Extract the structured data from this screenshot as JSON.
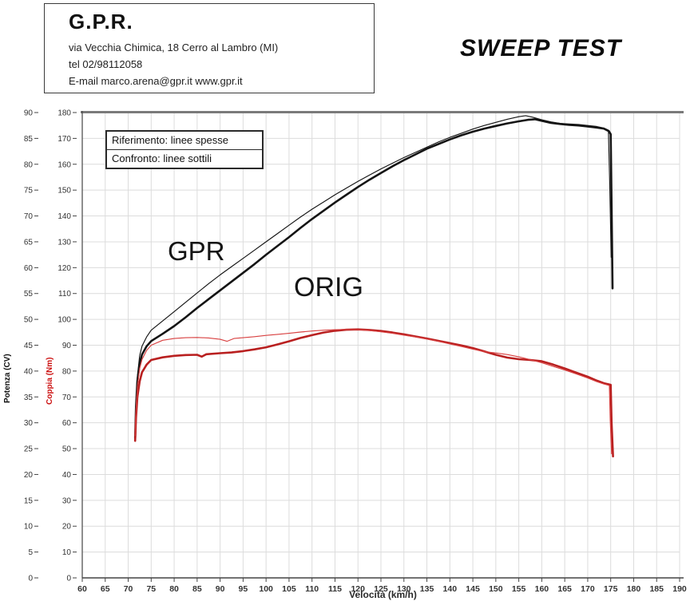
{
  "header": {
    "company": "G.P.R.",
    "address": "via Vecchia Chimica, 18 Cerro al Lambro (MI)",
    "phone": "tel 02/98112058",
    "email_line": "E-mail marco.arena@gpr.it  www.gpr.it"
  },
  "title": "SWEEP TEST",
  "legend": {
    "row1": "Riferimento: linee spesse",
    "row2": "Confronto: linee sottili"
  },
  "curve_labels": {
    "gpr": "GPR",
    "orig": "ORIG"
  },
  "chart_data": {
    "type": "line",
    "title": "SWEEP TEST",
    "xlabel": "Velocità (km/h)",
    "ylabel_left_primary": "Potenza (CV)",
    "ylabel_left_secondary": "Coppia (Nm)",
    "grid": true,
    "x_range": [
      60,
      190
    ],
    "x_ticks": [
      60,
      65,
      70,
      75,
      80,
      85,
      90,
      95,
      100,
      105,
      110,
      115,
      120,
      125,
      130,
      135,
      140,
      145,
      150,
      155,
      160,
      165,
      170,
      175,
      180,
      185,
      190
    ],
    "y_cv_range": [
      0,
      90
    ],
    "y_cv_ticks": [
      0,
      5,
      10,
      15,
      20,
      25,
      30,
      35,
      40,
      45,
      50,
      55,
      60,
      65,
      70,
      75,
      80,
      85,
      90
    ],
    "y_nm_range": [
      0,
      180
    ],
    "y_nm_ticks": [
      0,
      10,
      20,
      30,
      40,
      50,
      60,
      70,
      80,
      90,
      100,
      110,
      120,
      130,
      140,
      150,
      160,
      170,
      180
    ],
    "colors": {
      "power": "#141414",
      "torque_thick": "#b92020",
      "torque_thin": "#d84040",
      "grid": "#dcdcdc",
      "frame_top": "#7a7a7a",
      "axis": "#444444",
      "tick_text": "#333333"
    },
    "series": [
      {
        "name": "ORIG power (riferimento, linea spessa)",
        "unit": "CV",
        "style": "thick",
        "color": "#141414",
        "points": [
          [
            71.5,
            27
          ],
          [
            71.7,
            33
          ],
          [
            72,
            38
          ],
          [
            72.5,
            41.5
          ],
          [
            73,
            43.2
          ],
          [
            74,
            44.8
          ],
          [
            75,
            45.8
          ],
          [
            77.5,
            47.2
          ],
          [
            80,
            48.7
          ],
          [
            82.5,
            50.4
          ],
          [
            85,
            52.2
          ],
          [
            87.5,
            53.9
          ],
          [
            90,
            55.6
          ],
          [
            92.5,
            57.3
          ],
          [
            95,
            59
          ],
          [
            97.5,
            60.7
          ],
          [
            100,
            62.5
          ],
          [
            102.5,
            64.2
          ],
          [
            105,
            65.9
          ],
          [
            107.5,
            67.7
          ],
          [
            110,
            69.4
          ],
          [
            112.5,
            71
          ],
          [
            115,
            72.6
          ],
          [
            117.5,
            74.1
          ],
          [
            120,
            75.6
          ],
          [
            122.5,
            77
          ],
          [
            125,
            78.3
          ],
          [
            127.5,
            79.6
          ],
          [
            130,
            80.8
          ],
          [
            132.5,
            81.9
          ],
          [
            135,
            83
          ],
          [
            137.5,
            83.9
          ],
          [
            140,
            84.8
          ],
          [
            142.5,
            85.6
          ],
          [
            145,
            86.3
          ],
          [
            147.5,
            86.9
          ],
          [
            150,
            87.4
          ],
          [
            152.5,
            87.9
          ],
          [
            155,
            88.3
          ],
          [
            157,
            88.6
          ],
          [
            158.5,
            88.7
          ],
          [
            160,
            88.4
          ],
          [
            162,
            88
          ],
          [
            164,
            87.8
          ],
          [
            166,
            87.6
          ],
          [
            168,
            87.5
          ],
          [
            170,
            87.3
          ],
          [
            172,
            87.1
          ],
          [
            173.5,
            86.9
          ],
          [
            174.6,
            86.4
          ],
          [
            175,
            85.8
          ],
          [
            175.2,
            72
          ],
          [
            175.4,
            56
          ]
        ]
      },
      {
        "name": "GPR power (confronto, linea sottile)",
        "unit": "CV",
        "style": "thin",
        "color": "#141414",
        "points": [
          [
            71.5,
            27.5
          ],
          [
            71.7,
            34
          ],
          [
            72,
            39
          ],
          [
            72.5,
            43
          ],
          [
            73,
            44.8
          ],
          [
            74,
            46.6
          ],
          [
            75,
            47.9
          ],
          [
            77.5,
            49.7
          ],
          [
            80,
            51.5
          ],
          [
            82.5,
            53.3
          ],
          [
            85,
            55.1
          ],
          [
            87.5,
            56.9
          ],
          [
            90,
            58.6
          ],
          [
            92.5,
            60.2
          ],
          [
            95,
            61.8
          ],
          [
            97.5,
            63.4
          ],
          [
            100,
            65
          ],
          [
            102.5,
            66.6
          ],
          [
            105,
            68.2
          ],
          [
            107.5,
            69.8
          ],
          [
            110,
            71.3
          ],
          [
            112.5,
            72.7
          ],
          [
            115,
            74.1
          ],
          [
            117.5,
            75.4
          ],
          [
            120,
            76.7
          ],
          [
            122.5,
            77.9
          ],
          [
            125,
            79.1
          ],
          [
            127.5,
            80.2
          ],
          [
            130,
            81.3
          ],
          [
            132.5,
            82.3
          ],
          [
            135,
            83.3
          ],
          [
            137.5,
            84.3
          ],
          [
            140,
            85.2
          ],
          [
            142.5,
            86
          ],
          [
            145,
            86.8
          ],
          [
            147.5,
            87.5
          ],
          [
            150,
            88.1
          ],
          [
            152.5,
            88.7
          ],
          [
            155,
            89.2
          ],
          [
            156.5,
            89.4
          ],
          [
            158,
            89.1
          ],
          [
            160,
            88.6
          ],
          [
            162,
            88.2
          ],
          [
            164,
            87.9
          ],
          [
            166,
            87.8
          ],
          [
            168,
            87.7
          ],
          [
            170,
            87.5
          ],
          [
            172,
            87.3
          ],
          [
            173.5,
            87
          ],
          [
            174.5,
            86.6
          ],
          [
            174.8,
            76
          ],
          [
            175.1,
            62
          ]
        ]
      },
      {
        "name": "ORIG torque (riferimento, linea spessa)",
        "unit": "Nm",
        "style": "thick",
        "color": "#b92020",
        "points": [
          [
            71.5,
            53
          ],
          [
            71.7,
            62
          ],
          [
            72,
            70
          ],
          [
            72.5,
            76
          ],
          [
            73,
            79.5
          ],
          [
            74,
            82.5
          ],
          [
            75,
            84.3
          ],
          [
            77.5,
            85.3
          ],
          [
            80,
            85.9
          ],
          [
            82.5,
            86.2
          ],
          [
            85,
            86.3
          ],
          [
            86,
            85.6
          ],
          [
            87,
            86.5
          ],
          [
            90,
            86.9
          ],
          [
            92.5,
            87.2
          ],
          [
            95,
            87.7
          ],
          [
            97.5,
            88.4
          ],
          [
            100,
            89.2
          ],
          [
            102.5,
            90.3
          ],
          [
            105,
            91.5
          ],
          [
            107.5,
            92.8
          ],
          [
            110,
            93.9
          ],
          [
            112.5,
            94.9
          ],
          [
            115,
            95.6
          ],
          [
            117.5,
            96
          ],
          [
            120,
            96.1
          ],
          [
            122.5,
            95.9
          ],
          [
            125,
            95.5
          ],
          [
            127.5,
            94.9
          ],
          [
            130,
            94.2
          ],
          [
            132.5,
            93.4
          ],
          [
            135,
            92.6
          ],
          [
            137.5,
            91.7
          ],
          [
            140,
            90.8
          ],
          [
            142.5,
            89.9
          ],
          [
            145,
            88.9
          ],
          [
            147.5,
            87.6
          ],
          [
            150,
            86.3
          ],
          [
            152.5,
            85.2
          ],
          [
            155,
            84.6
          ],
          [
            157.5,
            84.3
          ],
          [
            160,
            83.8
          ],
          [
            162.5,
            82.5
          ],
          [
            165,
            81
          ],
          [
            167.5,
            79.4
          ],
          [
            170,
            77.8
          ],
          [
            172,
            76.3
          ],
          [
            173.5,
            75.3
          ],
          [
            175,
            74.7
          ],
          [
            175.2,
            60
          ],
          [
            175.5,
            47
          ]
        ]
      },
      {
        "name": "GPR torque (confronto, linea sottile)",
        "unit": "Nm",
        "style": "thin",
        "color": "#d84040",
        "points": [
          [
            71.5,
            55
          ],
          [
            71.7,
            65
          ],
          [
            72,
            74
          ],
          [
            72.5,
            81
          ],
          [
            73,
            84.5
          ],
          [
            74,
            88
          ],
          [
            75,
            90
          ],
          [
            77.5,
            91.9
          ],
          [
            80,
            92.6
          ],
          [
            82.5,
            92.9
          ],
          [
            85,
            93
          ],
          [
            87.5,
            92.8
          ],
          [
            90,
            92.3
          ],
          [
            91.5,
            91.5
          ],
          [
            93,
            92.6
          ],
          [
            95,
            92.9
          ],
          [
            97.5,
            93.3
          ],
          [
            100,
            93.8
          ],
          [
            102.5,
            94.2
          ],
          [
            105,
            94.6
          ],
          [
            107.5,
            95.1
          ],
          [
            110,
            95.5
          ],
          [
            112.5,
            95.8
          ],
          [
            115,
            96
          ],
          [
            117.5,
            96.1
          ],
          [
            120,
            96
          ],
          [
            122.5,
            95.7
          ],
          [
            125,
            95.2
          ],
          [
            127.5,
            94.6
          ],
          [
            130,
            93.9
          ],
          [
            132.5,
            93.2
          ],
          [
            135,
            92.4
          ],
          [
            137.5,
            91.5
          ],
          [
            140,
            90.5
          ],
          [
            142.5,
            89.5
          ],
          [
            145,
            88.5
          ],
          [
            147.5,
            87.5
          ],
          [
            150,
            87
          ],
          [
            152.5,
            86.4
          ],
          [
            155,
            85.5
          ],
          [
            157.5,
            84.4
          ],
          [
            160,
            83.2
          ],
          [
            162.5,
            81.8
          ],
          [
            165,
            80.4
          ],
          [
            167.5,
            78.9
          ],
          [
            170,
            77.3
          ],
          [
            172,
            75.9
          ],
          [
            173.5,
            75
          ],
          [
            174.7,
            74.4
          ],
          [
            174.9,
            61
          ],
          [
            175.2,
            48
          ]
        ]
      }
    ]
  }
}
